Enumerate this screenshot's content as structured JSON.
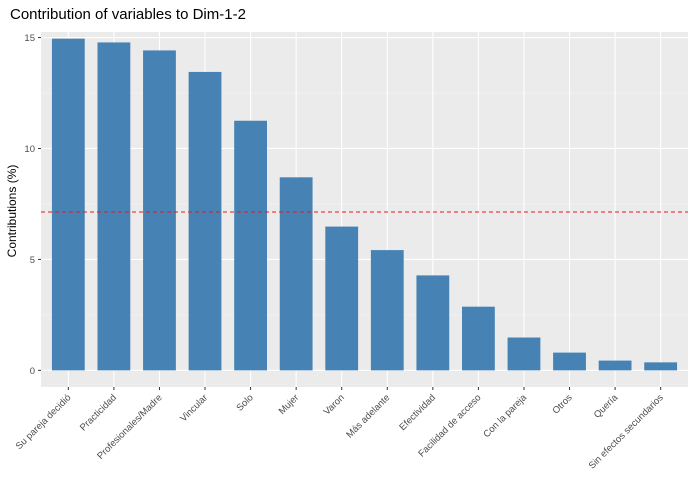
{
  "chart_data": {
    "type": "bar",
    "title": "Contribution of variables to Dim-1-2",
    "xlabel": "",
    "ylabel": "Contributions (%)",
    "categories": [
      "Su pareja decidió",
      "Practicidad",
      "Profesionales/Madre",
      "Vincular",
      "Solo",
      "Mujer",
      "Varon",
      "Más adelante",
      "Efectividad",
      "Facilidad de acceso",
      "Con la pareja",
      "Otros",
      "Quería",
      "Sin efectos secundarios"
    ],
    "values": [
      14.95,
      14.78,
      14.42,
      13.45,
      11.25,
      8.7,
      6.48,
      5.42,
      4.28,
      2.87,
      1.48,
      0.8,
      0.44,
      0.36
    ],
    "ylim": [
      -0.75,
      15.25
    ],
    "yticks": [
      0,
      5,
      10,
      15
    ],
    "reference_line": 7.14,
    "grid": true,
    "colors": {
      "bar": "#4682b4",
      "panel": "#ebebeb",
      "grid_major": "#ffffff",
      "grid_minor": "#f5f5f5",
      "reference": "#e41a1c"
    }
  }
}
